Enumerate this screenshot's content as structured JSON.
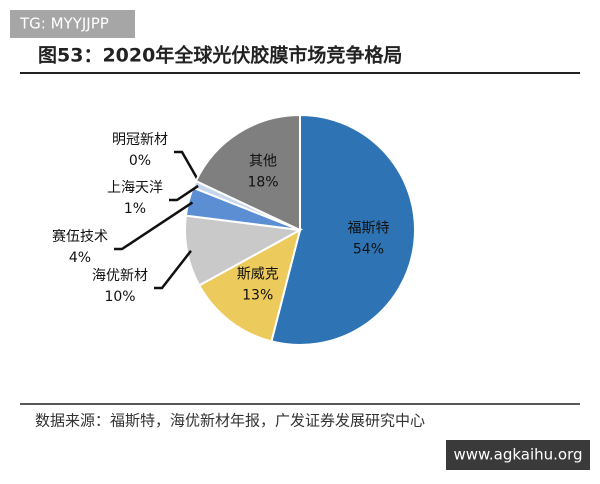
{
  "watermarks": {
    "top": "TG: MYYJJPP",
    "bottom": "www.agkaihu.org"
  },
  "chart_data": {
    "type": "pie",
    "title": "图53：2020年全球光伏胶膜市场竞争格局",
    "source": "数据来源：福斯特，海优新材年报，广发证券发展研究中心",
    "categories": [
      "福斯特",
      "斯威克",
      "海优新材",
      "赛伍技术",
      "上海天洋",
      "明冠新材",
      "其他"
    ],
    "values": [
      54,
      13,
      10,
      4,
      1,
      0,
      18
    ],
    "value_labels": [
      "54%",
      "13%",
      "10%",
      "4%",
      "1%",
      "0%",
      "18%"
    ],
    "colors": [
      "#2e74b5",
      "#ecca5c",
      "#c9c9c9",
      "#5b8ed3",
      "#c6d6ec",
      "#e8e8e8",
      "#7f7f7f"
    ]
  }
}
